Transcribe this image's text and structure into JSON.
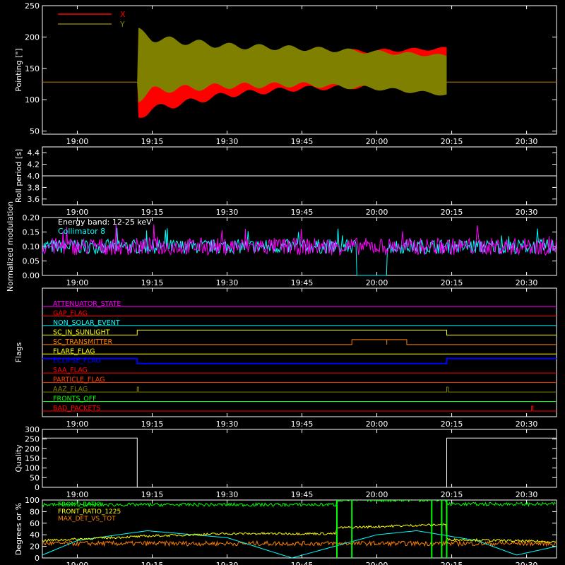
{
  "x_ticks": [
    "19:00",
    "19:15",
    "19:30",
    "19:45",
    "20:00",
    "20:15",
    "20:30"
  ],
  "colors": {
    "background": "#000000",
    "axes": "#ffffff",
    "red": "#ff0000",
    "olive": "#808000",
    "cyan": "#00ffff",
    "magenta": "#ff00ff",
    "yellow": "#ffff00",
    "green": "#00ff00",
    "orange": "#ff8000",
    "blue": "#0000ff",
    "orange_red": "#ff4000"
  },
  "chart_data": [
    {
      "id": "pointing",
      "type": "area",
      "ylabel": "Pointing [\"]",
      "yticks": [
        "50",
        "100",
        "150",
        "200",
        "250"
      ],
      "ylim": [
        45,
        250
      ],
      "xlim": [
        "18:53",
        "20:36"
      ],
      "legend": [
        {
          "name": "X",
          "color": "#ff0000"
        },
        {
          "name": "Y",
          "color": "#808000"
        }
      ],
      "series": [
        {
          "name": "X",
          "x": [
            "18:53",
            "19:12",
            "19:12",
            "19:15",
            "19:30",
            "19:45",
            "20:00",
            "20:14",
            "20:14",
            "20:36"
          ],
          "lower": [
            128,
            128,
            72,
            85,
            108,
            118,
            121,
            118,
            128,
            128
          ],
          "upper": [
            128,
            128,
            200,
            188,
            178,
            176,
            178,
            182,
            128,
            128
          ]
        },
        {
          "name": "Y",
          "x": [
            "18:53",
            "19:12",
            "19:12",
            "19:15",
            "19:30",
            "19:45",
            "20:00",
            "20:14",
            "20:14",
            "20:36"
          ],
          "lower": [
            128,
            128,
            100,
            115,
            122,
            124,
            118,
            108,
            128,
            128
          ],
          "upper": [
            128,
            128,
            210,
            198,
            186,
            182,
            176,
            170,
            128,
            128
          ]
        }
      ]
    },
    {
      "id": "roll",
      "type": "line",
      "ylabel": "Roll period [s]",
      "yticks": [
        "3.6",
        "3.8",
        "4.0",
        "4.2",
        "4.4"
      ],
      "ylim": [
        3.5,
        4.5
      ],
      "series": [
        {
          "name": "",
          "x": [
            "18:53",
            "20:36"
          ],
          "y": [
            4.0,
            4.0
          ],
          "color": "#ffffff"
        }
      ]
    },
    {
      "id": "modulation",
      "type": "line",
      "ylabel": "Normalized modulation",
      "yticks": [
        "0.00",
        "0.05",
        "0.10",
        "0.15",
        "0.20"
      ],
      "ylim": [
        0.0,
        0.2
      ],
      "annotations": [
        "Energy band: 12-25 keV",
        "Collimator 8"
      ],
      "series": [
        {
          "name": "Collimator 8",
          "color": "#00ffff",
          "baseline": 0.1,
          "spread": 0.025,
          "gaps": [
            [
              "19:56",
              "20:02"
            ]
          ]
        },
        {
          "name": "",
          "color": "#ff00ff",
          "baseline": 0.1,
          "spread": 0.03
        }
      ]
    },
    {
      "id": "flags",
      "type": "line",
      "ylabel": "Flags",
      "series": [
        {
          "name": "ATTENUATOR_STATE",
          "color": "#ff00ff",
          "steps": []
        },
        {
          "name": "GAP_FLAG",
          "color": "#ff0000",
          "steps": []
        },
        {
          "name": "NON_SOLAR_EVENT",
          "color": "#00ffff",
          "steps": []
        },
        {
          "name": "SC_IN_SUNLIGHT",
          "color": "#ffff00",
          "steps": [
            [
              "19:12",
              "20:14"
            ]
          ]
        },
        {
          "name": "SC_TRANSMITTER",
          "color": "#ff8000",
          "steps": [
            [
              "19:55",
              "20:02"
            ],
            [
              "20:02",
              "20:06"
            ]
          ]
        },
        {
          "name": "FLARE_FLAG",
          "color": "#ffff00",
          "steps": []
        },
        {
          "name": "ECLIPSE_FLAG",
          "color": "#0000ff",
          "inverted": true,
          "steps": [
            [
              "19:12",
              "20:14"
            ]
          ]
        },
        {
          "name": "SAA_FLAG",
          "color": "#ff0000",
          "steps": []
        },
        {
          "name": "PARTICLE_FLAG",
          "color": "#ff4000",
          "steps": []
        },
        {
          "name": "AAZ_FLAG",
          "color": "#808000",
          "steps": [
            [
              "19:12",
              "19:12"
            ],
            [
              "20:14",
              "20:14"
            ]
          ]
        },
        {
          "name": "FRONTS_OFF",
          "color": "#00ff00",
          "steps": []
        },
        {
          "name": "BAD_PACKETS",
          "color": "#ff0000",
          "steps": [
            [
              "20:31",
              "20:31"
            ]
          ]
        }
      ]
    },
    {
      "id": "quality",
      "type": "line",
      "ylabel": "Quality",
      "yticks": [
        "0",
        "50",
        "100",
        "150",
        "200",
        "250",
        "300"
      ],
      "ylim": [
        0,
        300
      ],
      "series": [
        {
          "name": "",
          "color": "#ffffff",
          "x": [
            "18:53",
            "19:12",
            "19:12",
            "20:14",
            "20:14",
            "20:36"
          ],
          "y": [
            255,
            255,
            0,
            0,
            255,
            255
          ]
        }
      ]
    },
    {
      "id": "ratios",
      "type": "line",
      "ylabel": "Degrees or %",
      "yticks": [
        "0",
        "20",
        "40",
        "60",
        "80",
        "100"
      ],
      "ylim": [
        0,
        100
      ],
      "legend": [
        {
          "name": "FRONT_RATIO",
          "color": "#00ff00"
        },
        {
          "name": "FRONT_RATIO_1225",
          "color": "#ffff00"
        },
        {
          "name": "MAX_DET_VS_TOT",
          "color": "#ff8000"
        }
      ],
      "series": [
        {
          "name": "FRONT_RATIO",
          "color": "#00ff00",
          "x": [
            "18:53",
            "19:52",
            "19:52",
            "20:14",
            "20:14",
            "20:36"
          ],
          "y": [
            92,
            92,
            100,
            100,
            93,
            93
          ]
        },
        {
          "name": "FRONT_RATIO_1225",
          "color": "#ffff00",
          "x": [
            "18:53",
            "19:15",
            "19:30",
            "19:52",
            "19:52",
            "20:14",
            "20:14",
            "20:36"
          ],
          "y": [
            30,
            38,
            42,
            42,
            52,
            58,
            32,
            28
          ]
        },
        {
          "name": "MAX_DET_VS_TOT",
          "color": "#ff8000",
          "x": [
            "18:53",
            "20:36"
          ],
          "y": [
            25,
            25
          ]
        },
        {
          "name": "",
          "color": "#00ffff",
          "x": [
            "18:53",
            "19:00",
            "19:14",
            "19:30",
            "19:43",
            "20:00",
            "20:08",
            "20:20",
            "20:28",
            "20:36"
          ],
          "y": [
            5,
            30,
            47,
            35,
            0,
            40,
            47,
            30,
            5,
            20
          ]
        }
      ]
    }
  ]
}
